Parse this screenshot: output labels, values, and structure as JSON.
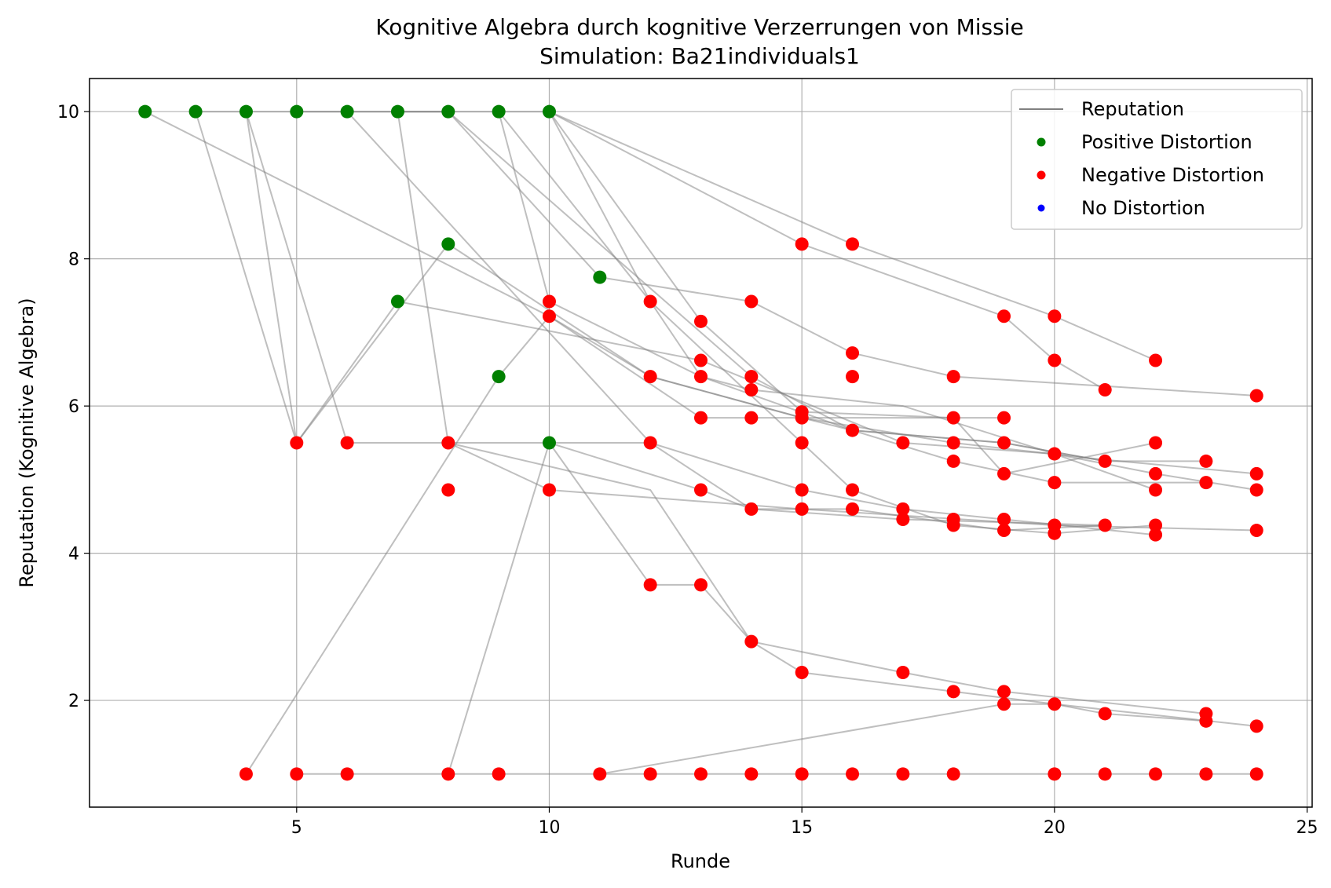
{
  "chart_data": {
    "type": "scatter",
    "title": "Kognitive Algebra durch kognitive Verzerrungen von Missie",
    "subtitle": "Simulation: Ba21individuals1",
    "xlabel": "Runde",
    "ylabel": "Reputation (Kognitive Algebra)",
    "xlim": [
      0.9,
      25.1
    ],
    "ylim": [
      0.55,
      10.45
    ],
    "xticks": [
      5,
      10,
      15,
      20,
      25
    ],
    "yticks": [
      2,
      4,
      6,
      8,
      10
    ],
    "grid": true,
    "legend_position": "top-right",
    "legend": [
      {
        "label": "Reputation",
        "kind": "line",
        "color": "#808080"
      },
      {
        "label": "Positive Distortion",
        "kind": "marker",
        "color": "#008000"
      },
      {
        "label": "Negative Distortion",
        "kind": "marker",
        "color": "#ff0000"
      },
      {
        "label": "No Distortion",
        "kind": "marker",
        "color": "#0000ff"
      }
    ],
    "colors": {
      "positive": "#008000",
      "negative": "#ff0000",
      "none": "#0000ff",
      "line": "#808080",
      "grid": "#b0b0b0"
    },
    "lines": [
      [
        [
          2,
          10
        ],
        [
          10,
          7.22
        ],
        [
          12,
          6.4
        ],
        [
          15,
          5.84
        ],
        [
          16,
          5.67
        ],
        [
          19,
          5.5
        ],
        [
          21,
          5.25
        ]
      ],
      [
        [
          3,
          10
        ],
        [
          5,
          5.5
        ],
        [
          8,
          8.2
        ],
        [
          12,
          6.4
        ],
        [
          15,
          5.84
        ],
        [
          18,
          5.5
        ],
        [
          21,
          5.27
        ],
        [
          24,
          5.08
        ]
      ],
      [
        [
          3,
          10
        ],
        [
          10,
          10
        ],
        [
          12,
          7.42
        ],
        [
          13,
          6.4
        ],
        [
          16,
          5.67
        ],
        [
          19,
          5.5
        ],
        [
          21,
          5.25
        ],
        [
          23,
          5.25
        ]
      ],
      [
        [
          4,
          10
        ],
        [
          5,
          5.5
        ],
        [
          7,
          7.42
        ],
        [
          13,
          6.62
        ],
        [
          17,
          5.5
        ],
        [
          20,
          5.35
        ],
        [
          22,
          4.86
        ]
      ],
      [
        [
          4,
          10
        ],
        [
          6,
          5.5
        ],
        [
          8,
          5.5
        ],
        [
          12,
          5.5
        ],
        [
          15,
          4.86
        ],
        [
          17,
          4.6
        ],
        [
          19,
          4.46
        ],
        [
          22,
          4.25
        ]
      ],
      [
        [
          5,
          10
        ],
        [
          8,
          10
        ],
        [
          14,
          6.4
        ],
        [
          16,
          5.67
        ],
        [
          18,
          5.25
        ],
        [
          20,
          4.96
        ],
        [
          23,
          4.96
        ]
      ],
      [
        [
          6,
          10
        ],
        [
          10,
          7.0
        ],
        [
          12,
          5.5
        ],
        [
          14,
          4.6
        ],
        [
          17,
          4.46
        ],
        [
          21,
          4.38
        ]
      ],
      [
        [
          7,
          10
        ],
        [
          8,
          5.5
        ],
        [
          10,
          4.86
        ],
        [
          15,
          4.6
        ],
        [
          20,
          4.38
        ],
        [
          24,
          4.31
        ]
      ],
      [
        [
          9,
          10
        ],
        [
          10,
          7.42
        ],
        [
          13,
          6.4
        ],
        [
          14,
          6.22
        ],
        [
          17,
          6.0
        ],
        [
          20,
          5.35
        ],
        [
          22,
          5.08
        ],
        [
          24,
          4.86
        ]
      ],
      [
        [
          9,
          10
        ],
        [
          12,
          7.42
        ],
        [
          15,
          5.5
        ],
        [
          16,
          4.86
        ],
        [
          18,
          4.38
        ],
        [
          20,
          4.27
        ],
        [
          22,
          4.38
        ]
      ],
      [
        [
          10,
          10
        ],
        [
          13,
          7.15
        ],
        [
          15,
          5.92
        ],
        [
          18,
          5.84
        ],
        [
          19,
          5.08
        ],
        [
          22,
          5.5
        ]
      ],
      [
        [
          10,
          10
        ],
        [
          15,
          8.2
        ],
        [
          19,
          7.22
        ],
        [
          20,
          6.62
        ],
        [
          21,
          6.22
        ]
      ],
      [
        [
          10,
          10
        ],
        [
          16,
          8.2
        ],
        [
          20,
          7.22
        ],
        [
          22,
          6.62
        ]
      ],
      [
        [
          10,
          5.5
        ],
        [
          12,
          3.57
        ],
        [
          13,
          3.57
        ],
        [
          14,
          2.8
        ],
        [
          17,
          2.38
        ],
        [
          19,
          2.12
        ],
        [
          23,
          1.82
        ]
      ],
      [
        [
          8,
          5.5
        ],
        [
          12,
          4.86
        ],
        [
          14,
          2.8
        ],
        [
          15,
          2.38
        ],
        [
          18,
          2.12
        ],
        [
          20,
          1.95
        ],
        [
          24,
          1.65
        ]
      ],
      [
        [
          7,
          10
        ],
        [
          8,
          10
        ],
        [
          11,
          7.75
        ],
        [
          14,
          7.42
        ],
        [
          16,
          6.72
        ],
        [
          18,
          6.4
        ],
        [
          24,
          6.14
        ]
      ],
      [
        [
          4,
          1
        ],
        [
          9,
          6.4
        ],
        [
          10,
          7.22
        ],
        [
          13,
          5.84
        ],
        [
          15,
          5.84
        ],
        [
          18,
          5.84
        ],
        [
          19,
          5.84
        ]
      ],
      [
        [
          8,
          1
        ],
        [
          10,
          5.5
        ],
        [
          13,
          4.86
        ],
        [
          14,
          4.6
        ],
        [
          16,
          4.6
        ],
        [
          19,
          4.31
        ],
        [
          21,
          4.38
        ]
      ],
      [
        [
          5,
          1
        ],
        [
          24,
          1
        ]
      ],
      [
        [
          11,
          1
        ],
        [
          19,
          1.95
        ],
        [
          20,
          1.95
        ],
        [
          21,
          1.82
        ],
        [
          23,
          1.72
        ]
      ]
    ],
    "positive_points": [
      [
        2,
        10
      ],
      [
        3,
        10
      ],
      [
        4,
        10
      ],
      [
        5,
        10
      ],
      [
        6,
        10
      ],
      [
        7,
        10
      ],
      [
        8,
        10
      ],
      [
        9,
        10
      ],
      [
        10,
        10
      ],
      [
        8,
        8.2
      ],
      [
        7,
        7.42
      ],
      [
        11,
        7.75
      ],
      [
        9,
        6.4
      ],
      [
        10,
        5.5
      ]
    ],
    "negative_points": [
      [
        5,
        5.5
      ],
      [
        6,
        5.5
      ],
      [
        8,
        5.5
      ],
      [
        8,
        4.86
      ],
      [
        10,
        7.42
      ],
      [
        10,
        7.22
      ],
      [
        10,
        4.86
      ],
      [
        12,
        7.42
      ],
      [
        12,
        6.4
      ],
      [
        12,
        5.5
      ],
      [
        12,
        3.57
      ],
      [
        13,
        7.15
      ],
      [
        13,
        6.62
      ],
      [
        13,
        6.4
      ],
      [
        13,
        5.84
      ],
      [
        13,
        4.86
      ],
      [
        13,
        3.57
      ],
      [
        14,
        7.42
      ],
      [
        14,
        6.4
      ],
      [
        14,
        6.22
      ],
      [
        14,
        5.84
      ],
      [
        14,
        4.6
      ],
      [
        14,
        2.8
      ],
      [
        15,
        8.2
      ],
      [
        15,
        5.92
      ],
      [
        15,
        5.84
      ],
      [
        15,
        5.5
      ],
      [
        15,
        4.86
      ],
      [
        15,
        4.6
      ],
      [
        15,
        2.38
      ],
      [
        16,
        8.2
      ],
      [
        16,
        6.72
      ],
      [
        16,
        6.4
      ],
      [
        16,
        5.67
      ],
      [
        16,
        4.86
      ],
      [
        16,
        4.6
      ],
      [
        17,
        5.5
      ],
      [
        17,
        4.6
      ],
      [
        17,
        4.46
      ],
      [
        17,
        2.38
      ],
      [
        18,
        6.4
      ],
      [
        18,
        5.84
      ],
      [
        18,
        5.5
      ],
      [
        18,
        5.25
      ],
      [
        18,
        4.46
      ],
      [
        18,
        4.38
      ],
      [
        18,
        2.12
      ],
      [
        19,
        7.22
      ],
      [
        19,
        5.84
      ],
      [
        19,
        5.5
      ],
      [
        19,
        5.08
      ],
      [
        19,
        4.46
      ],
      [
        19,
        4.31
      ],
      [
        19,
        2.12
      ],
      [
        19,
        1.95
      ],
      [
        20,
        7.22
      ],
      [
        20,
        6.62
      ],
      [
        20,
        5.35
      ],
      [
        20,
        4.96
      ],
      [
        20,
        4.38
      ],
      [
        20,
        4.27
      ],
      [
        20,
        1.95
      ],
      [
        21,
        6.22
      ],
      [
        21,
        5.25
      ],
      [
        21,
        4.38
      ],
      [
        21,
        1.82
      ],
      [
        22,
        6.62
      ],
      [
        22,
        5.5
      ],
      [
        22,
        5.08
      ],
      [
        22,
        4.86
      ],
      [
        22,
        4.38
      ],
      [
        22,
        4.25
      ],
      [
        23,
        5.25
      ],
      [
        23,
        4.96
      ],
      [
        23,
        1.82
      ],
      [
        23,
        1.72
      ],
      [
        24,
        6.14
      ],
      [
        24,
        5.08
      ],
      [
        24,
        4.86
      ],
      [
        24,
        4.31
      ],
      [
        24,
        1.65
      ],
      [
        4,
        1
      ],
      [
        5,
        1
      ],
      [
        6,
        1
      ],
      [
        8,
        1
      ],
      [
        9,
        1
      ],
      [
        11,
        1
      ],
      [
        12,
        1
      ],
      [
        13,
        1
      ],
      [
        14,
        1
      ],
      [
        15,
        1
      ],
      [
        16,
        1
      ],
      [
        17,
        1
      ],
      [
        18,
        1
      ],
      [
        20,
        1
      ],
      [
        21,
        1
      ],
      [
        22,
        1
      ],
      [
        23,
        1
      ],
      [
        24,
        1
      ]
    ],
    "none_points": []
  }
}
